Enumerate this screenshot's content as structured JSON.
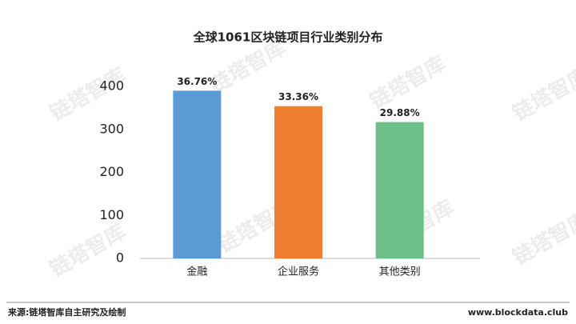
{
  "chart_data": {
    "type": "bar",
    "title": "全球1061区块链项目行业类别分布",
    "categories": [
      "金融",
      "企业服务",
      "其他类别"
    ],
    "values": [
      390,
      354,
      317
    ],
    "value_labels": [
      "36.76%",
      "33.36%",
      "29.88%"
    ],
    "colors": [
      "#5b9bd5",
      "#ed7d31",
      "#6dbf88"
    ],
    "ylim": [
      0,
      400
    ],
    "yticks": [
      0,
      100,
      200,
      300,
      400
    ],
    "grid": false
  },
  "footer": {
    "source": "来源:链塔智库自主研究及绘制",
    "site": "www.blockdata.club"
  },
  "watermark": "链塔智库"
}
